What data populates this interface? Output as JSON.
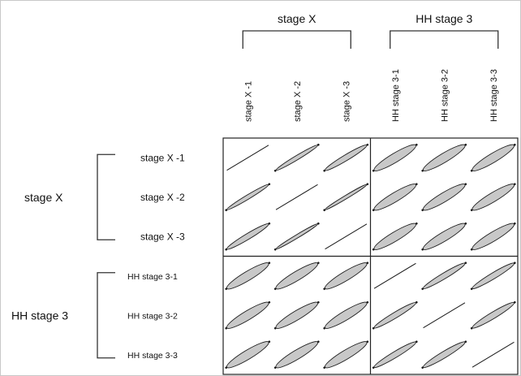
{
  "chart_data": {
    "type": "scatter",
    "layout": "scatter-matrix",
    "top_groups": [
      {
        "label": "stage X",
        "columns": [
          0,
          1,
          2
        ]
      },
      {
        "label": "HH stage 3",
        "columns": [
          3,
          4,
          5
        ]
      }
    ],
    "left_groups": [
      {
        "label": "stage X",
        "rows": [
          0,
          1,
          2
        ]
      },
      {
        "label": "HH stage 3",
        "rows": [
          3,
          4,
          5
        ]
      }
    ],
    "column_labels": [
      "stage X -1",
      "stage X -2",
      "stage X -3",
      "HH stage 3-1",
      "HH stage 3-2",
      "HH stage 3-3"
    ],
    "row_labels": [
      "stage X -1",
      "stage X -2",
      "stage X -3",
      "HH stage 3-1",
      "HH stage 3-2",
      "HH stage 3-3"
    ],
    "cell_spread": [
      [
        0.0,
        0.18,
        0.28,
        0.5,
        0.5,
        0.5
      ],
      [
        0.18,
        0.0,
        0.12,
        0.5,
        0.5,
        0.5
      ],
      [
        0.28,
        0.12,
        0.0,
        0.5,
        0.5,
        0.5
      ],
      [
        0.5,
        0.5,
        0.5,
        0.0,
        0.28,
        0.3
      ],
      [
        0.5,
        0.5,
        0.5,
        0.28,
        0.0,
        0.32
      ],
      [
        0.5,
        0.5,
        0.5,
        0.3,
        0.32,
        0.0
      ]
    ],
    "point_fill": "#c8c8c8",
    "point_stroke": "#1a1a1a",
    "grid": false
  }
}
